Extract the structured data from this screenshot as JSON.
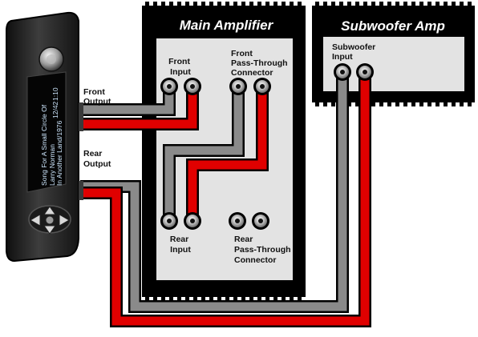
{
  "colors": {
    "left_cable": "#8a8a8a",
    "right_cable": "#e00000",
    "cable_outline": "#000000",
    "amp_body": "#e3e3e3",
    "amp_frame": "#000000",
    "title_text": "#ffffff",
    "head_unit_body": "#2e2e2e",
    "head_unit_display_text": "#cfe8ff"
  },
  "head_unit": {
    "icon": "car-stereo-head-unit",
    "display": {
      "track": "Song For A Small Circle Of",
      "artist": "Larry Norman",
      "album": "In Another Land/1976",
      "track_number": "12/42",
      "time": "1:10"
    },
    "front_output_label": [
      "Front",
      "Output"
    ],
    "rear_output_label": [
      "Rear",
      "Output"
    ]
  },
  "main_amplifier": {
    "title": "Main Amplifier",
    "front_input_label": [
      "Front",
      "Input"
    ],
    "front_passthrough_label": [
      "Front",
      "Pass-Through",
      "Connector"
    ],
    "rear_input_label": [
      "Rear",
      "Input"
    ],
    "rear_passthrough_label": [
      "Rear",
      "Pass-Through",
      "Connector"
    ]
  },
  "subwoofer_amp": {
    "title": "Subwoofer Amp",
    "input_label": [
      "Subwoofer",
      "Input"
    ]
  },
  "connections": [
    {
      "from": "Front Output",
      "to": "Front Input"
    },
    {
      "from": "Front Pass-Through Connector",
      "to": "Rear Input"
    },
    {
      "from": "Rear Output",
      "to": "Subwoofer Input"
    }
  ]
}
